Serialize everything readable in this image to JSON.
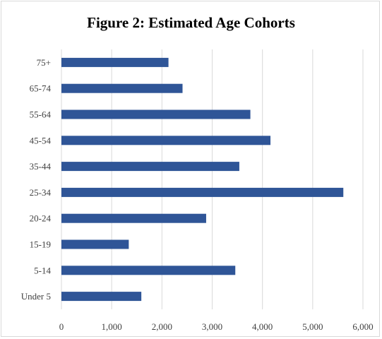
{
  "chart_data": {
    "type": "bar",
    "orientation": "horizontal",
    "title": "Figure 2: Estimated Age Cohorts",
    "categories": [
      "75+",
      "65-74",
      "55-64",
      "45-54",
      "35-44",
      "25-34",
      "20-24",
      "15-19",
      "5-14",
      "Under 5"
    ],
    "values": [
      2130,
      2410,
      3760,
      4160,
      3540,
      5610,
      2880,
      1340,
      3460,
      1590
    ],
    "xlim": [
      0,
      6000
    ],
    "xticks": [
      0,
      1000,
      2000,
      3000,
      4000,
      5000,
      6000
    ],
    "xtick_labels": [
      "0",
      "1,000",
      "2,000",
      "3,000",
      "4,000",
      "5,000",
      "6,000"
    ],
    "grid": "vertical",
    "legend": "none",
    "bar_color": "#2f5597",
    "grid_color": "#d9d9d9"
  }
}
